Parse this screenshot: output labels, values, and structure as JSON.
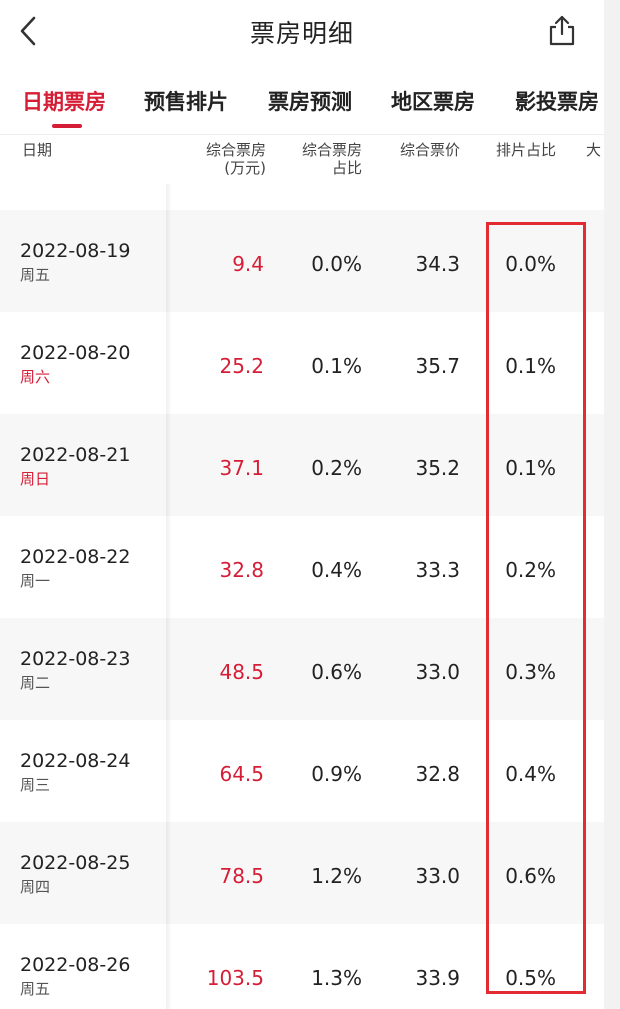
{
  "header": {
    "title": "票房明细"
  },
  "tabs": [
    "日期票房",
    "预售排片",
    "票房预测",
    "地区票房",
    "影投票房"
  ],
  "table": {
    "headers": {
      "date": "日期",
      "box_office": "综合票房",
      "box_office_unit": "(万元)",
      "share": "综合票房",
      "share_sub": "占比",
      "price": "综合票价",
      "schedule": "排片占比",
      "cut": "大"
    },
    "rows": [
      {
        "date": "2022-08-19",
        "weekday": "周五",
        "box_office": "9.4",
        "share": "0.0%",
        "price": "34.3",
        "schedule": "0.0%"
      },
      {
        "date": "2022-08-20",
        "weekday": "周六",
        "box_office": "25.2",
        "share": "0.1%",
        "price": "35.7",
        "schedule": "0.1%"
      },
      {
        "date": "2022-08-21",
        "weekday": "周日",
        "box_office": "37.1",
        "share": "0.2%",
        "price": "35.2",
        "schedule": "0.1%"
      },
      {
        "date": "2022-08-22",
        "weekday": "周一",
        "box_office": "32.8",
        "share": "0.4%",
        "price": "33.3",
        "schedule": "0.2%"
      },
      {
        "date": "2022-08-23",
        "weekday": "周二",
        "box_office": "48.5",
        "share": "0.6%",
        "price": "33.0",
        "schedule": "0.3%"
      },
      {
        "date": "2022-08-24",
        "weekday": "周三",
        "box_office": "64.5",
        "share": "0.9%",
        "price": "32.8",
        "schedule": "0.4%"
      },
      {
        "date": "2022-08-25",
        "weekday": "周四",
        "box_office": "78.5",
        "share": "1.2%",
        "price": "33.0",
        "schedule": "0.6%"
      },
      {
        "date": "2022-08-26",
        "weekday": "周五",
        "box_office": "103.5",
        "share": "1.3%",
        "price": "33.9",
        "schedule": "0.5%"
      }
    ]
  },
  "colors": {
    "accent": "#d61d36",
    "highlight": "#e32b32"
  }
}
